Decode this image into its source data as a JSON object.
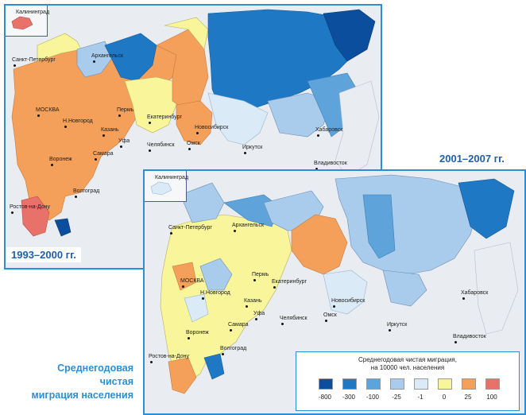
{
  "title_lines": [
    "Среднегодовая",
    "чистая",
    "миграция населения"
  ],
  "periods": [
    "1993–2000 гг.",
    "2001–2007 гг."
  ],
  "legend": {
    "title_line1": "Среднегодовая чистая миграция,",
    "title_line2": "на 10000 чел. населения",
    "classes": [
      {
        "label": "-800",
        "color": "#0b4e9e"
      },
      {
        "label": "-300",
        "color": "#1f78c4"
      },
      {
        "label": "-100",
        "color": "#5fa3db"
      },
      {
        "label": "-25",
        "color": "#a9cbec"
      },
      {
        "label": "-1",
        "color": "#daeaf7"
      },
      {
        "label": "0",
        "color": "#f8f59a"
      },
      {
        "label": "25",
        "color": "#f5a05a"
      },
      {
        "label": "100",
        "color": "#e8726a"
      }
    ]
  },
  "map1": {
    "inset_label": "Калининград",
    "cities": [
      "Санкт-Петербург",
      "Архангельск",
      "МОСКВА",
      "Н.Новгород",
      "Пермь",
      "Екатеринбург",
      "Казань",
      "Уфа",
      "Челябинск",
      "Омск",
      "Новосибирск",
      "Самара",
      "Воронеж",
      "Волгоград",
      "Ростов-на-Дону",
      "Иркутск",
      "Хабаровск",
      "Владивосток"
    ]
  },
  "map2": {
    "inset_label": "Калининград",
    "cities": [
      "Санкт-Петербург",
      "Архангельск",
      "МОСКВА",
      "Н.Новгород",
      "Пермь",
      "Екатеринбург",
      "Казань",
      "Уфа",
      "Челябинск",
      "Омск",
      "Новосибирск",
      "Самара",
      "Воронеж",
      "Волгоград",
      "Ростов-на-Дону",
      "Иркутск",
      "Хабаровск",
      "Владивосток"
    ]
  }
}
